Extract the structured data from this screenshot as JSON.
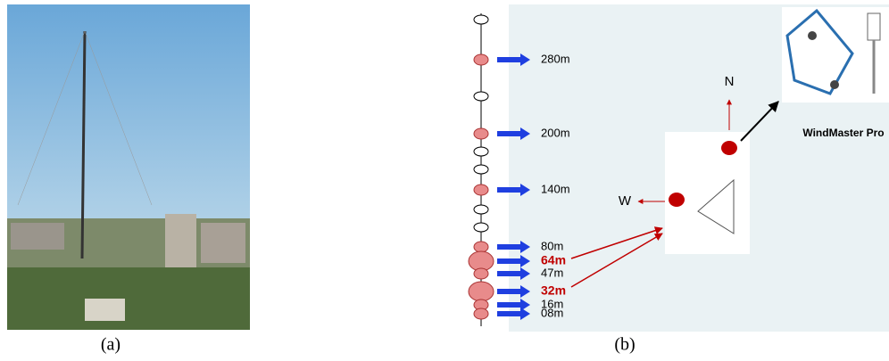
{
  "panel_a": {
    "caption": "(a)"
  },
  "panel_b": {
    "caption": "(b)",
    "levels": [
      "280m",
      "200m",
      "140m",
      "80m",
      "64m",
      "47m",
      "32m",
      "16m",
      "08m"
    ],
    "compass": {
      "north": "N",
      "west": "W"
    },
    "instrument": "WindMaster  Pro"
  }
}
